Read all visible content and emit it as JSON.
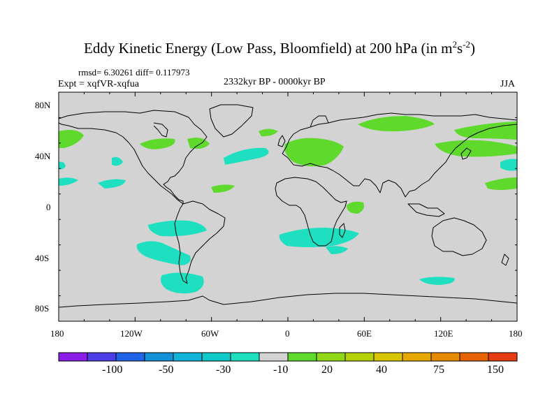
{
  "header": {
    "title_main": "Eddy Kinetic Energy (Low Pass, Bloomfield) at 200 hPa (in m",
    "title_sup1": "2",
    "title_s": "s",
    "title_sup2": "-2",
    "title_close": ")",
    "rmsd": "rmsd= 6.30261 diff= 0.117973",
    "expt": "Expt = xqfVR-xqfua",
    "period": "2332kyr BP - 0000kyr BP",
    "season": "JJA"
  },
  "axes": {
    "lat_ticks": [
      "80N",
      "40N",
      "0",
      "40S",
      "80S"
    ],
    "lon_ticks": [
      "180",
      "120W",
      "60W",
      "0",
      "60E",
      "120E",
      "180"
    ]
  },
  "colorbar": {
    "colors": [
      "#8a1ee6",
      "#4d3ee6",
      "#1f64e6",
      "#1591d9",
      "#10b4d8",
      "#0fc9c9",
      "#1ee0c0",
      "#d3d3d3",
      "#5ed92c",
      "#8fd616",
      "#b5d10a",
      "#d8c500",
      "#e6a800",
      "#e68a00",
      "#e66400",
      "#e63c14"
    ],
    "labels": [
      "-100",
      "-50",
      "-30",
      "-10",
      "20",
      "40",
      "75",
      "150"
    ]
  },
  "map": {
    "land_color": "#d3d3d3",
    "positive_color": "#5ed92c",
    "negative_color": "#1ee0c0"
  }
}
